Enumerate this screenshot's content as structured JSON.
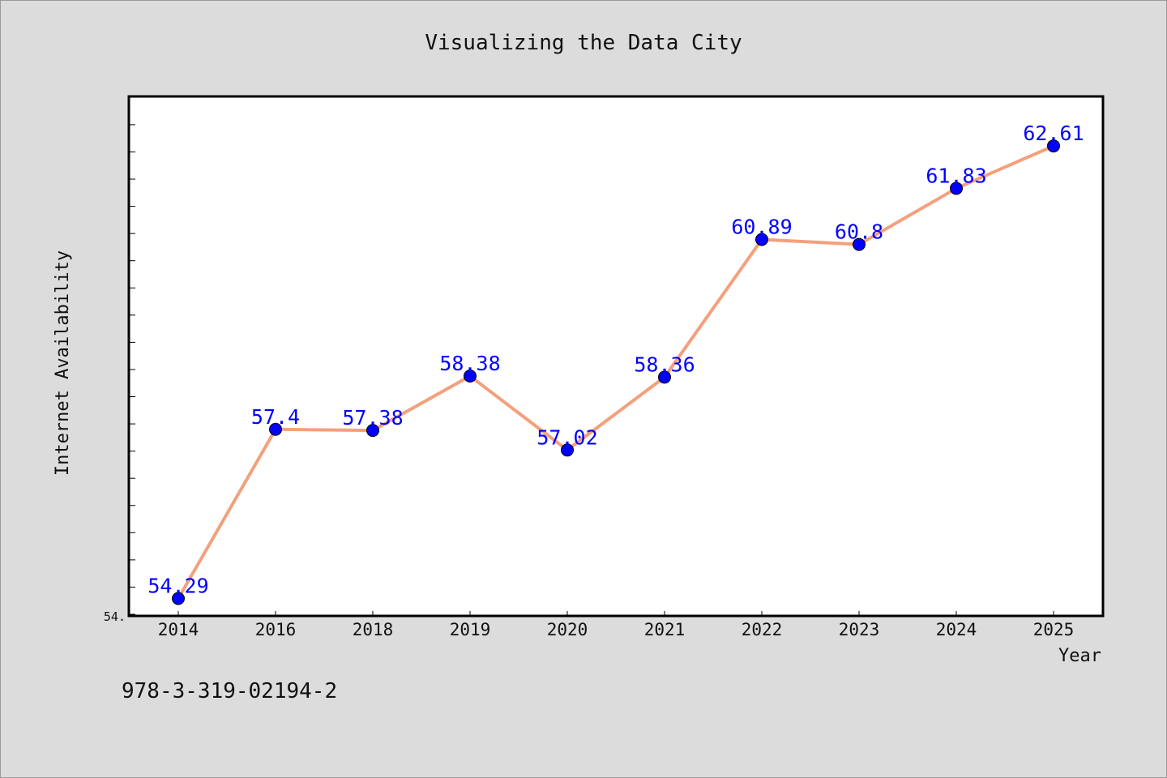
{
  "chart_data": {
    "type": "line",
    "title": "Visualizing the Data City",
    "xlabel": "Year",
    "ylabel": "Internet Availability",
    "categories": [
      "2014",
      "2016",
      "2018",
      "2019",
      "2020",
      "2021",
      "2022",
      "2023",
      "2024",
      "2025"
    ],
    "values": [
      54.29,
      57.4,
      57.38,
      58.38,
      57.02,
      58.36,
      60.89,
      60.8,
      61.83,
      62.61
    ],
    "data_labels": [
      "54.29",
      "57.4",
      "57.38",
      "58.38",
      "57.02",
      "58.36",
      "60.89",
      "60.8",
      "61.83",
      "62.61"
    ],
    "y_tick_label": "54.",
    "ylim": [
      53.97,
      63.52
    ],
    "grid": false,
    "line_color": "#f4a07c",
    "marker_color": "#0000ff",
    "label_color": "#0000ff"
  },
  "footer_text": "978-3-319-02194-2"
}
